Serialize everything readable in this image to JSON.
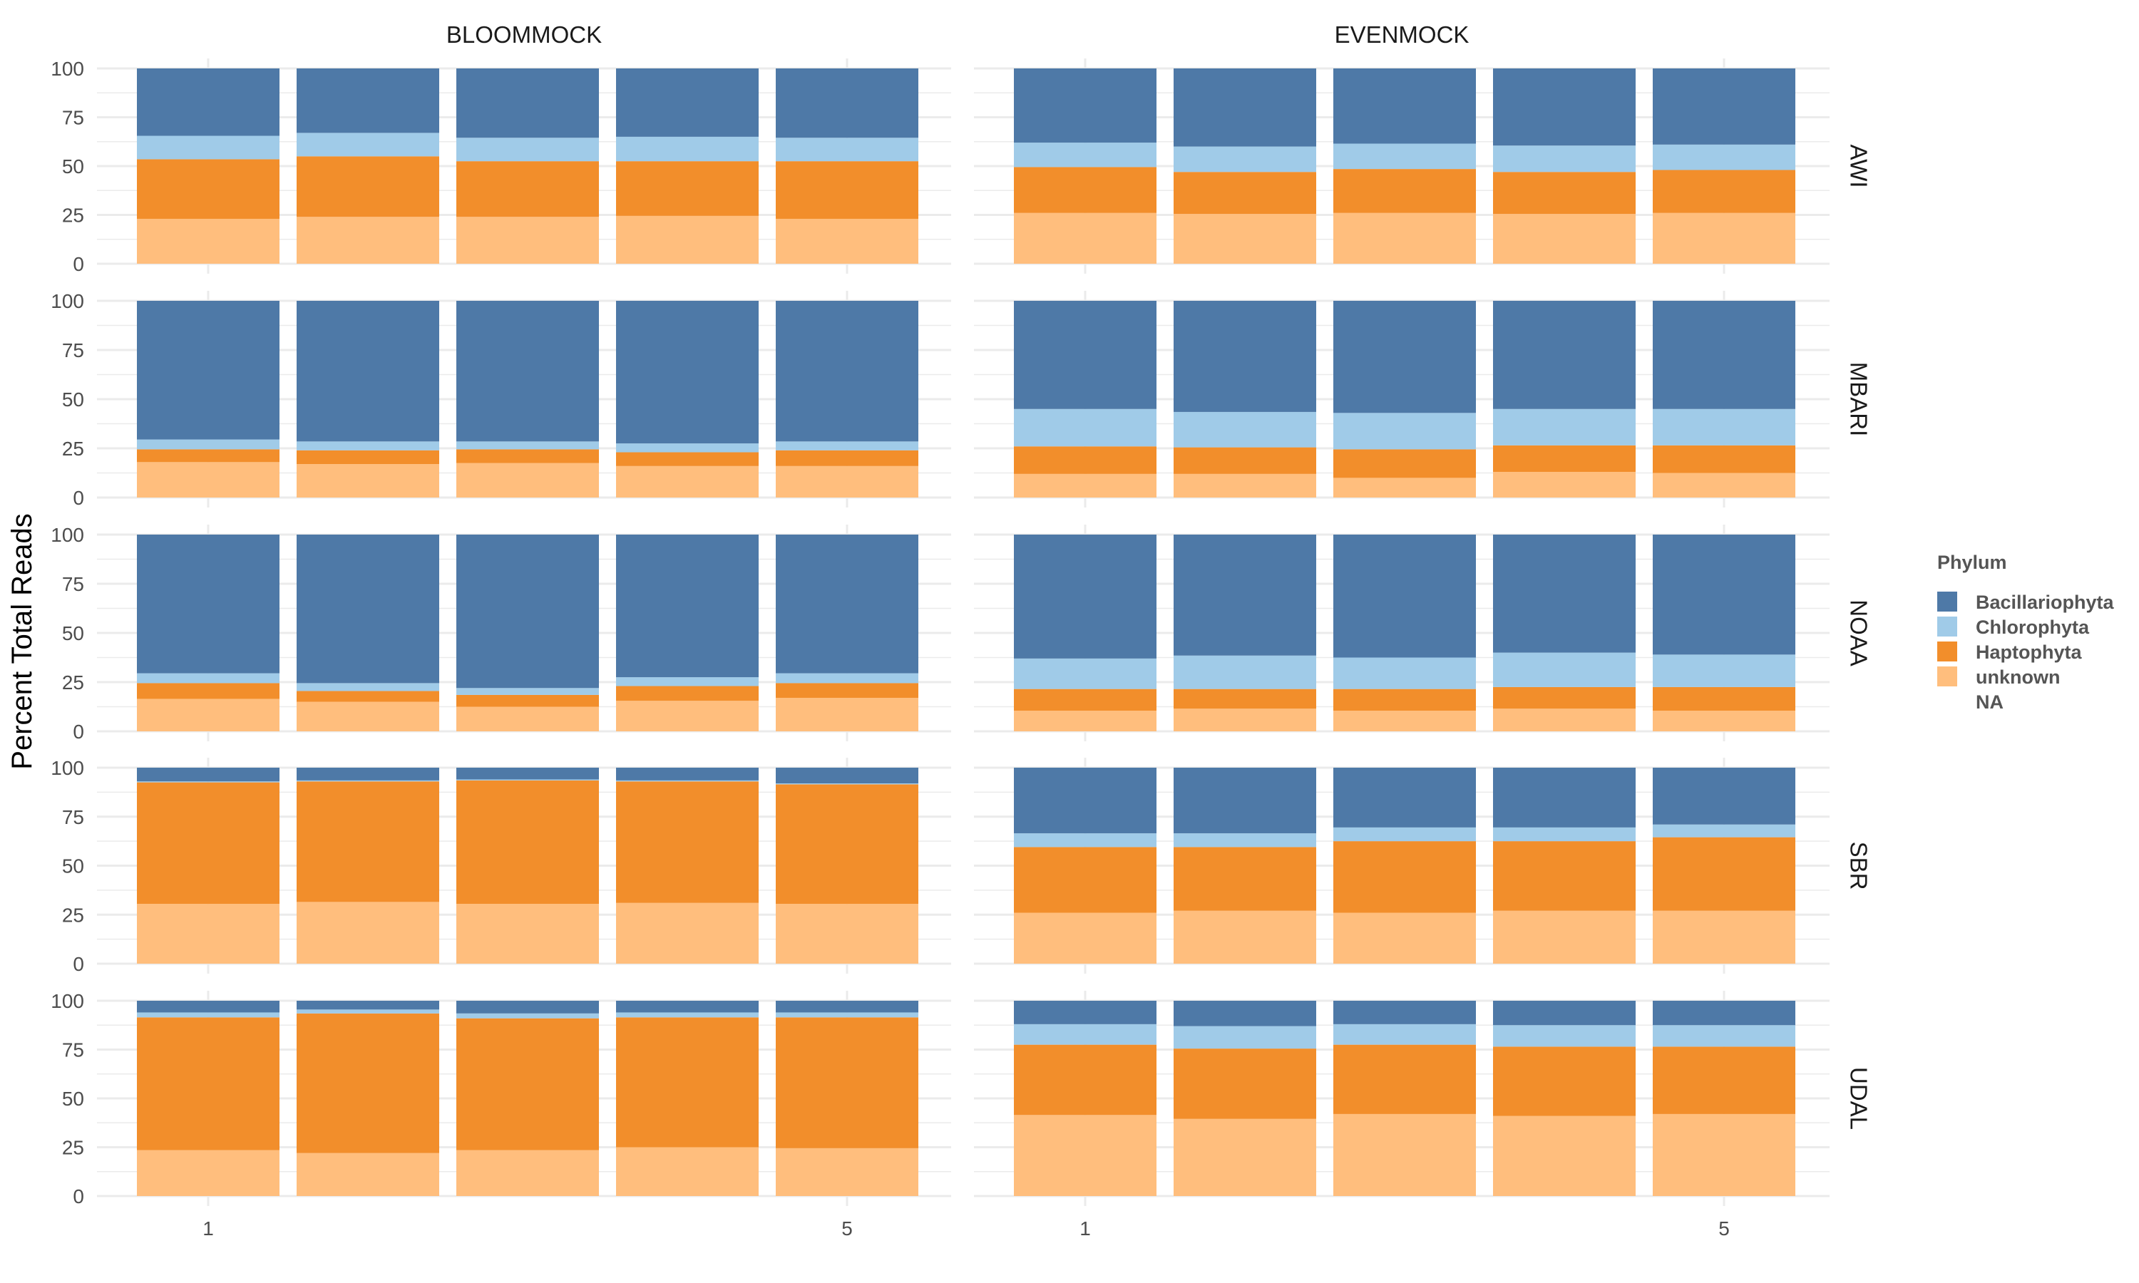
{
  "chart_data": {
    "type": "bar",
    "stacked": true,
    "ylabel": "Percent Total Reads",
    "xlabel": "",
    "ylim": [
      0,
      100
    ],
    "y_ticks": [
      "0",
      "25",
      "50",
      "75",
      "100"
    ],
    "x_tick_labels": [
      {
        "pos": 1,
        "label": "1"
      },
      {
        "pos": 5,
        "label": "5"
      }
    ],
    "grid": true,
    "legend_position": "right",
    "legend": {
      "title": "Phylum",
      "entries": [
        {
          "label": "Bacillariophyta",
          "color": "#4e79a7"
        },
        {
          "label": "Chlorophyta",
          "color": "#a0cbe8"
        },
        {
          "label": "Haptophyta",
          "color": "#f28e2b"
        },
        {
          "label": "unknown",
          "color": "#ffbe7d"
        },
        {
          "label": "NA",
          "color": null
        }
      ]
    },
    "columns": [
      "BLOOMMOCK",
      "EVENMOCK"
    ],
    "rows": [
      "AWI",
      "MBARI",
      "NOAA",
      "SBR",
      "UDAL"
    ],
    "categories": [
      "1",
      "2",
      "3",
      "4",
      "5"
    ],
    "series_order": [
      "unknown",
      "Haptophyta",
      "Chlorophyta",
      "Bacillariophyta"
    ],
    "panels": [
      {
        "column": "BLOOMMOCK",
        "row": "AWI",
        "unknown": [
          23,
          24,
          24,
          24.5,
          23
        ],
        "Haptophyta": [
          30.5,
          31,
          28.5,
          28,
          29.5
        ],
        "Chlorophyta": [
          12,
          12,
          12,
          12.5,
          12
        ],
        "Bacillariophyta": [
          34.5,
          33,
          35.5,
          35,
          35.5
        ]
      },
      {
        "column": "EVENMOCK",
        "row": "AWI",
        "unknown": [
          26,
          25.5,
          26,
          25.5,
          26
        ],
        "Haptophyta": [
          23.5,
          21.5,
          22.5,
          21.5,
          22
        ],
        "Chlorophyta": [
          12.5,
          13,
          13,
          13.5,
          13
        ],
        "Bacillariophyta": [
          38,
          40,
          38.5,
          39.5,
          39
        ]
      },
      {
        "column": "BLOOMMOCK",
        "row": "MBARI",
        "unknown": [
          18,
          17,
          17.5,
          16,
          16
        ],
        "Haptophyta": [
          6.5,
          7,
          7,
          7,
          8
        ],
        "Chlorophyta": [
          5,
          4.5,
          4,
          4.5,
          4.5
        ],
        "Bacillariophyta": [
          70.5,
          71.5,
          71.5,
          72.5,
          71.5
        ]
      },
      {
        "column": "EVENMOCK",
        "row": "MBARI",
        "unknown": [
          12,
          12,
          10,
          13,
          12.5
        ],
        "Haptophyta": [
          14,
          13.5,
          14.5,
          13.5,
          14
        ],
        "Chlorophyta": [
          19,
          18,
          18.5,
          18.5,
          18.5
        ],
        "Bacillariophyta": [
          55,
          56.5,
          57,
          55,
          55
        ]
      },
      {
        "column": "BLOOMMOCK",
        "row": "NOAA",
        "unknown": [
          16.5,
          15,
          12.5,
          15.5,
          17
        ],
        "Haptophyta": [
          8,
          5.5,
          6,
          7.5,
          7.5
        ],
        "Chlorophyta": [
          5,
          4,
          3.5,
          4.5,
          5
        ],
        "Bacillariophyta": [
          70.5,
          75.5,
          78,
          72.5,
          70.5
        ]
      },
      {
        "column": "EVENMOCK",
        "row": "NOAA",
        "unknown": [
          10.5,
          11.5,
          10.5,
          11.5,
          10.5
        ],
        "Haptophyta": [
          11,
          10,
          11,
          11,
          12
        ],
        "Chlorophyta": [
          15.5,
          17,
          16,
          17.5,
          16.5
        ],
        "Bacillariophyta": [
          63,
          61.5,
          62.5,
          60,
          61
        ]
      },
      {
        "column": "BLOOMMOCK",
        "row": "SBR",
        "unknown": [
          30.5,
          31.5,
          30.5,
          31,
          30.5
        ],
        "Haptophyta": [
          62,
          61.5,
          63,
          62,
          61
        ],
        "Chlorophyta": [
          0.5,
          0.5,
          0.5,
          0.5,
          0.5
        ],
        "Bacillariophyta": [
          7,
          6.5,
          6,
          6.5,
          8
        ]
      },
      {
        "column": "EVENMOCK",
        "row": "SBR",
        "unknown": [
          26,
          27,
          26,
          27,
          27
        ],
        "Haptophyta": [
          33.5,
          32.5,
          36.5,
          35.5,
          37.5
        ],
        "Chlorophyta": [
          7,
          7,
          7,
          7,
          6.5
        ],
        "Bacillariophyta": [
          33.5,
          33.5,
          30.5,
          30.5,
          29
        ]
      },
      {
        "column": "BLOOMMOCK",
        "row": "UDAL",
        "unknown": [
          23.5,
          22,
          23.5,
          25,
          24.5
        ],
        "Haptophyta": [
          68,
          71.5,
          67.5,
          66.5,
          67
        ],
        "Chlorophyta": [
          2.5,
          2,
          2.5,
          2.5,
          2.5
        ],
        "Bacillariophyta": [
          6,
          4.5,
          6.5,
          6,
          6
        ]
      },
      {
        "column": "EVENMOCK",
        "row": "UDAL",
        "unknown": [
          41.5,
          39.5,
          42,
          41,
          42
        ],
        "Haptophyta": [
          36,
          36,
          35.5,
          35.5,
          34.5
        ],
        "Chlorophyta": [
          10.5,
          11.5,
          10.5,
          11,
          11
        ],
        "Bacillariophyta": [
          12,
          13,
          12,
          12.5,
          12.5
        ]
      }
    ]
  }
}
